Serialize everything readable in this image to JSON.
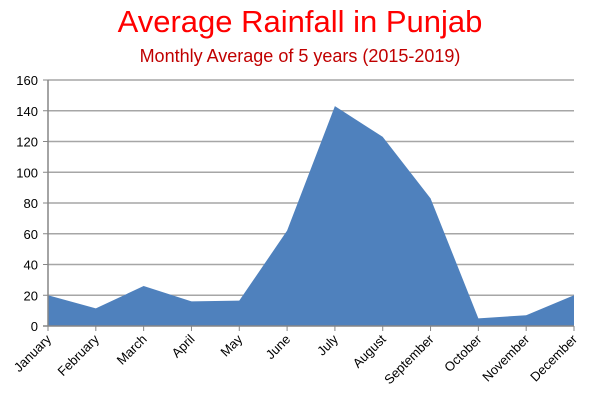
{
  "chart_data": {
    "type": "area",
    "title": "Average Rainfall in Punjab",
    "subtitle": "Monthly Average of 5 years (2015-2019)",
    "xlabel": "",
    "ylabel": "",
    "categories": [
      "January",
      "February",
      "March",
      "April",
      "May",
      "June",
      "July",
      "August",
      "September",
      "October",
      "November",
      "December"
    ],
    "values": [
      20,
      11.5,
      26,
      16,
      16.5,
      62,
      143,
      123,
      83,
      5,
      7,
      20
    ],
    "ylim": [
      0,
      160
    ],
    "yticks": [
      0,
      20,
      40,
      60,
      80,
      100,
      120,
      140,
      160
    ],
    "grid": true,
    "legend": "none",
    "colors": {
      "fill": "#4f81bd",
      "title": "#ff0000",
      "subtitle": "#c00000",
      "grid": "#a6a6a6"
    }
  }
}
